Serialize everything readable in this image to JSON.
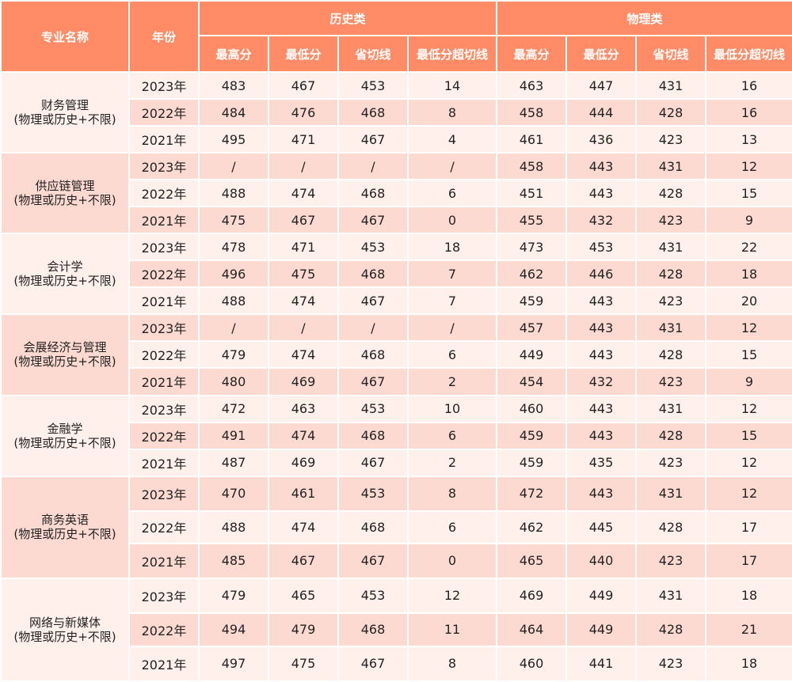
{
  "header": {
    "major": "专业名称",
    "year": "年份",
    "groups": [
      "历史类",
      "物理类"
    ],
    "columns": [
      "最高分",
      "最低分",
      "省切线",
      "最低分超切线"
    ]
  },
  "majors": [
    {
      "name": "财务管理",
      "requirement": "(物理或历史+不限)",
      "rows": [
        {
          "year": "2023年",
          "history": [
            "483",
            "467",
            "453",
            "14"
          ],
          "physics": [
            "463",
            "447",
            "431",
            "16"
          ]
        },
        {
          "year": "2022年",
          "history": [
            "484",
            "476",
            "468",
            "8"
          ],
          "physics": [
            "458",
            "444",
            "428",
            "16"
          ]
        },
        {
          "year": "2021年",
          "history": [
            "495",
            "471",
            "467",
            "4"
          ],
          "physics": [
            "461",
            "436",
            "423",
            "13"
          ]
        }
      ]
    },
    {
      "name": "供应链管理",
      "requirement": "(物理或历史+不限)",
      "rows": [
        {
          "year": "2023年",
          "history": [
            "/",
            "/",
            "/",
            "/"
          ],
          "physics": [
            "458",
            "443",
            "431",
            "12"
          ]
        },
        {
          "year": "2022年",
          "history": [
            "488",
            "474",
            "468",
            "6"
          ],
          "physics": [
            "451",
            "443",
            "428",
            "15"
          ]
        },
        {
          "year": "2021年",
          "history": [
            "475",
            "467",
            "467",
            "0"
          ],
          "physics": [
            "455",
            "432",
            "423",
            "9"
          ]
        }
      ]
    },
    {
      "name": "会计学",
      "requirement": "(物理或历史+不限)",
      "rows": [
        {
          "year": "2023年",
          "history": [
            "478",
            "471",
            "453",
            "18"
          ],
          "physics": [
            "473",
            "453",
            "431",
            "22"
          ]
        },
        {
          "year": "2022年",
          "history": [
            "496",
            "475",
            "468",
            "7"
          ],
          "physics": [
            "462",
            "446",
            "428",
            "18"
          ]
        },
        {
          "year": "2021年",
          "history": [
            "488",
            "474",
            "467",
            "7"
          ],
          "physics": [
            "459",
            "443",
            "423",
            "20"
          ]
        }
      ]
    },
    {
      "name": "会展经济与管理",
      "requirement": "(物理或历史+不限)",
      "rows": [
        {
          "year": "2023年",
          "history": [
            "/",
            "/",
            "/",
            "/"
          ],
          "physics": [
            "457",
            "443",
            "431",
            "12"
          ]
        },
        {
          "year": "2022年",
          "history": [
            "479",
            "474",
            "468",
            "6"
          ],
          "physics": [
            "449",
            "443",
            "428",
            "15"
          ]
        },
        {
          "year": "2021年",
          "history": [
            "480",
            "469",
            "467",
            "2"
          ],
          "physics": [
            "454",
            "432",
            "423",
            "9"
          ]
        }
      ]
    },
    {
      "name": "金融学",
      "requirement": "(物理或历史+不限)",
      "rows": [
        {
          "year": "2023年",
          "history": [
            "472",
            "463",
            "453",
            "10"
          ],
          "physics": [
            "460",
            "443",
            "431",
            "12"
          ]
        },
        {
          "year": "2022年",
          "history": [
            "491",
            "474",
            "468",
            "6"
          ],
          "physics": [
            "459",
            "443",
            "428",
            "15"
          ]
        },
        {
          "year": "2021年",
          "history": [
            "487",
            "469",
            "467",
            "2"
          ],
          "physics": [
            "459",
            "435",
            "423",
            "12"
          ]
        }
      ]
    },
    {
      "name": "商务英语",
      "requirement": "(物理或历史+不限)",
      "rows": [
        {
          "year": "2023年",
          "history": [
            "470",
            "461",
            "453",
            "8"
          ],
          "physics": [
            "472",
            "443",
            "431",
            "12"
          ]
        },
        {
          "year": "2022年",
          "history": [
            "488",
            "474",
            "468",
            "6"
          ],
          "physics": [
            "462",
            "445",
            "428",
            "17"
          ]
        },
        {
          "year": "2021年",
          "history": [
            "485",
            "467",
            "467",
            "0"
          ],
          "physics": [
            "465",
            "440",
            "423",
            "17"
          ]
        }
      ]
    },
    {
      "name": "网络与新媒体",
      "requirement": "(物理或历史+不限)",
      "rows": [
        {
          "year": "2023年",
          "history": [
            "479",
            "465",
            "453",
            "12"
          ],
          "physics": [
            "469",
            "449",
            "431",
            "18"
          ]
        },
        {
          "year": "2022年",
          "history": [
            "494",
            "479",
            "468",
            "11"
          ],
          "physics": [
            "464",
            "449",
            "428",
            "21"
          ]
        },
        {
          "year": "2021年",
          "history": [
            "497",
            "475",
            "467",
            "8"
          ],
          "physics": [
            "460",
            "441",
            "423",
            "18"
          ]
        }
      ]
    }
  ]
}
